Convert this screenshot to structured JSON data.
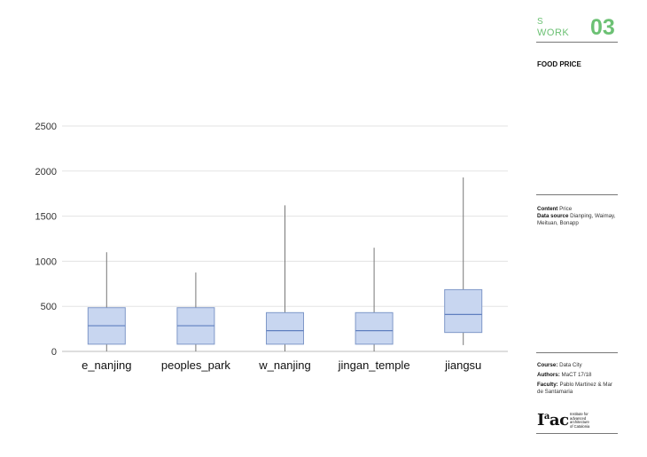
{
  "header": {
    "s": "S",
    "work": "WORK",
    "number": "03",
    "title": "FOOD PRICE"
  },
  "info": {
    "content_label": "Content",
    "content_value": "Price",
    "source_label": "Data source",
    "source_value": "Dianping, Waimay, Meituan, Bonapp"
  },
  "credits": {
    "course_label": "Course:",
    "course_value": "Data City",
    "authors_label": "Authors:",
    "authors_value": "MaCT 17/18",
    "faculty_label": "Faculty:",
    "faculty_value": "Pablo Martinez  & Mar de Santamaria"
  },
  "logo": {
    "mark_main": "I",
    "mark_sup": "a",
    "mark_rest": "ac",
    "line1": "Institute for",
    "line2": "advanced",
    "line3": "architecture",
    "line4": "of Catalonia"
  },
  "colors": {
    "accent": "#6cc174",
    "box_fill": "#c8d6f0",
    "box_stroke": "#7f98c8",
    "median": "#5f7fbf",
    "whisker": "#777777"
  },
  "chart_data": {
    "type": "box",
    "title": "",
    "xlabel": "",
    "ylabel": "",
    "ylim": [
      0,
      2500
    ],
    "yticks": [
      0,
      500,
      1000,
      1500,
      2000,
      2500
    ],
    "grid": true,
    "categories": [
      "e_nanjing",
      "peoples_park",
      "w_nanjing",
      "jingan_temple",
      "jiangsu"
    ],
    "boxes": [
      {
        "min": 0,
        "q1": 80,
        "median": 285,
        "q3": 485,
        "max": 1100
      },
      {
        "min": 0,
        "q1": 80,
        "median": 285,
        "q3": 485,
        "max": 875
      },
      {
        "min": 0,
        "q1": 80,
        "median": 230,
        "q3": 430,
        "max": 1620
      },
      {
        "min": 0,
        "q1": 80,
        "median": 230,
        "q3": 430,
        "max": 1150
      },
      {
        "min": 70,
        "q1": 210,
        "median": 410,
        "q3": 685,
        "max": 1930
      }
    ]
  }
}
